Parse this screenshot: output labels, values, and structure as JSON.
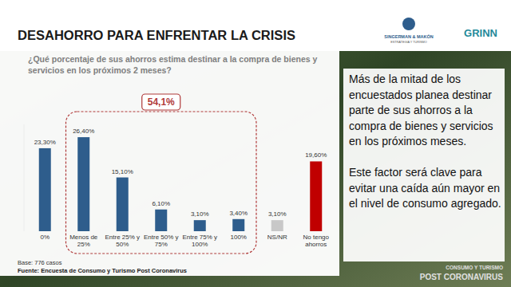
{
  "chart_data": {
    "type": "bar",
    "title": "DESAHORRO PARA ENFRENTAR LA CRISIS",
    "subtitle": "¿Qué porcentaje de sus ahorros estima destinar a la compra de bienes y servicios en los próximos 2 meses?",
    "categories": [
      "0%",
      "Menos de 25%",
      "Entre 25% y 50%",
      "Entre 50% y 75%",
      "Entre 75% y 100%",
      "100%",
      "NS/NR",
      "No tengo ahorros"
    ],
    "values": [
      23.3,
      26.4,
      15.1,
      6.1,
      3.1,
      3.4,
      3.1,
      19.6
    ],
    "value_labels": [
      "23,30%",
      "26,40%",
      "15,10%",
      "6,10%",
      "3,10%",
      "3,40%",
      "3,10%",
      "19,60%"
    ],
    "colors": [
      "#2e5d8c",
      "#2e5d8c",
      "#2e5d8c",
      "#2e5d8c",
      "#2e5d8c",
      "#2e5d8c",
      "#c8c8c8",
      "#c00000"
    ],
    "ylim": [
      0,
      30
    ],
    "grid": false,
    "data_labels": true,
    "tick_labels": "x",
    "annotation": "54,1%"
  },
  "logos": [
    "SINGERMAN & MAKÓN",
    "ESTRATEGIA Y TURISMO",
    "GRINN"
  ],
  "commentary": [
    "Más de la mitad de los encuestados planea destinar parte de sus ahorros a la compra de bienes y servicios en los próximos meses.",
    "Este factor será clave para evitar una caída aún mayor en el nivel de consumo agregado."
  ],
  "base": "Base: 776 casos",
  "source": "Fuente: Encuesta de Consumo y Turismo Post Coronavirus",
  "footer": [
    "CONSUMO Y TURISMO",
    "POST CORONAVIRUS"
  ]
}
